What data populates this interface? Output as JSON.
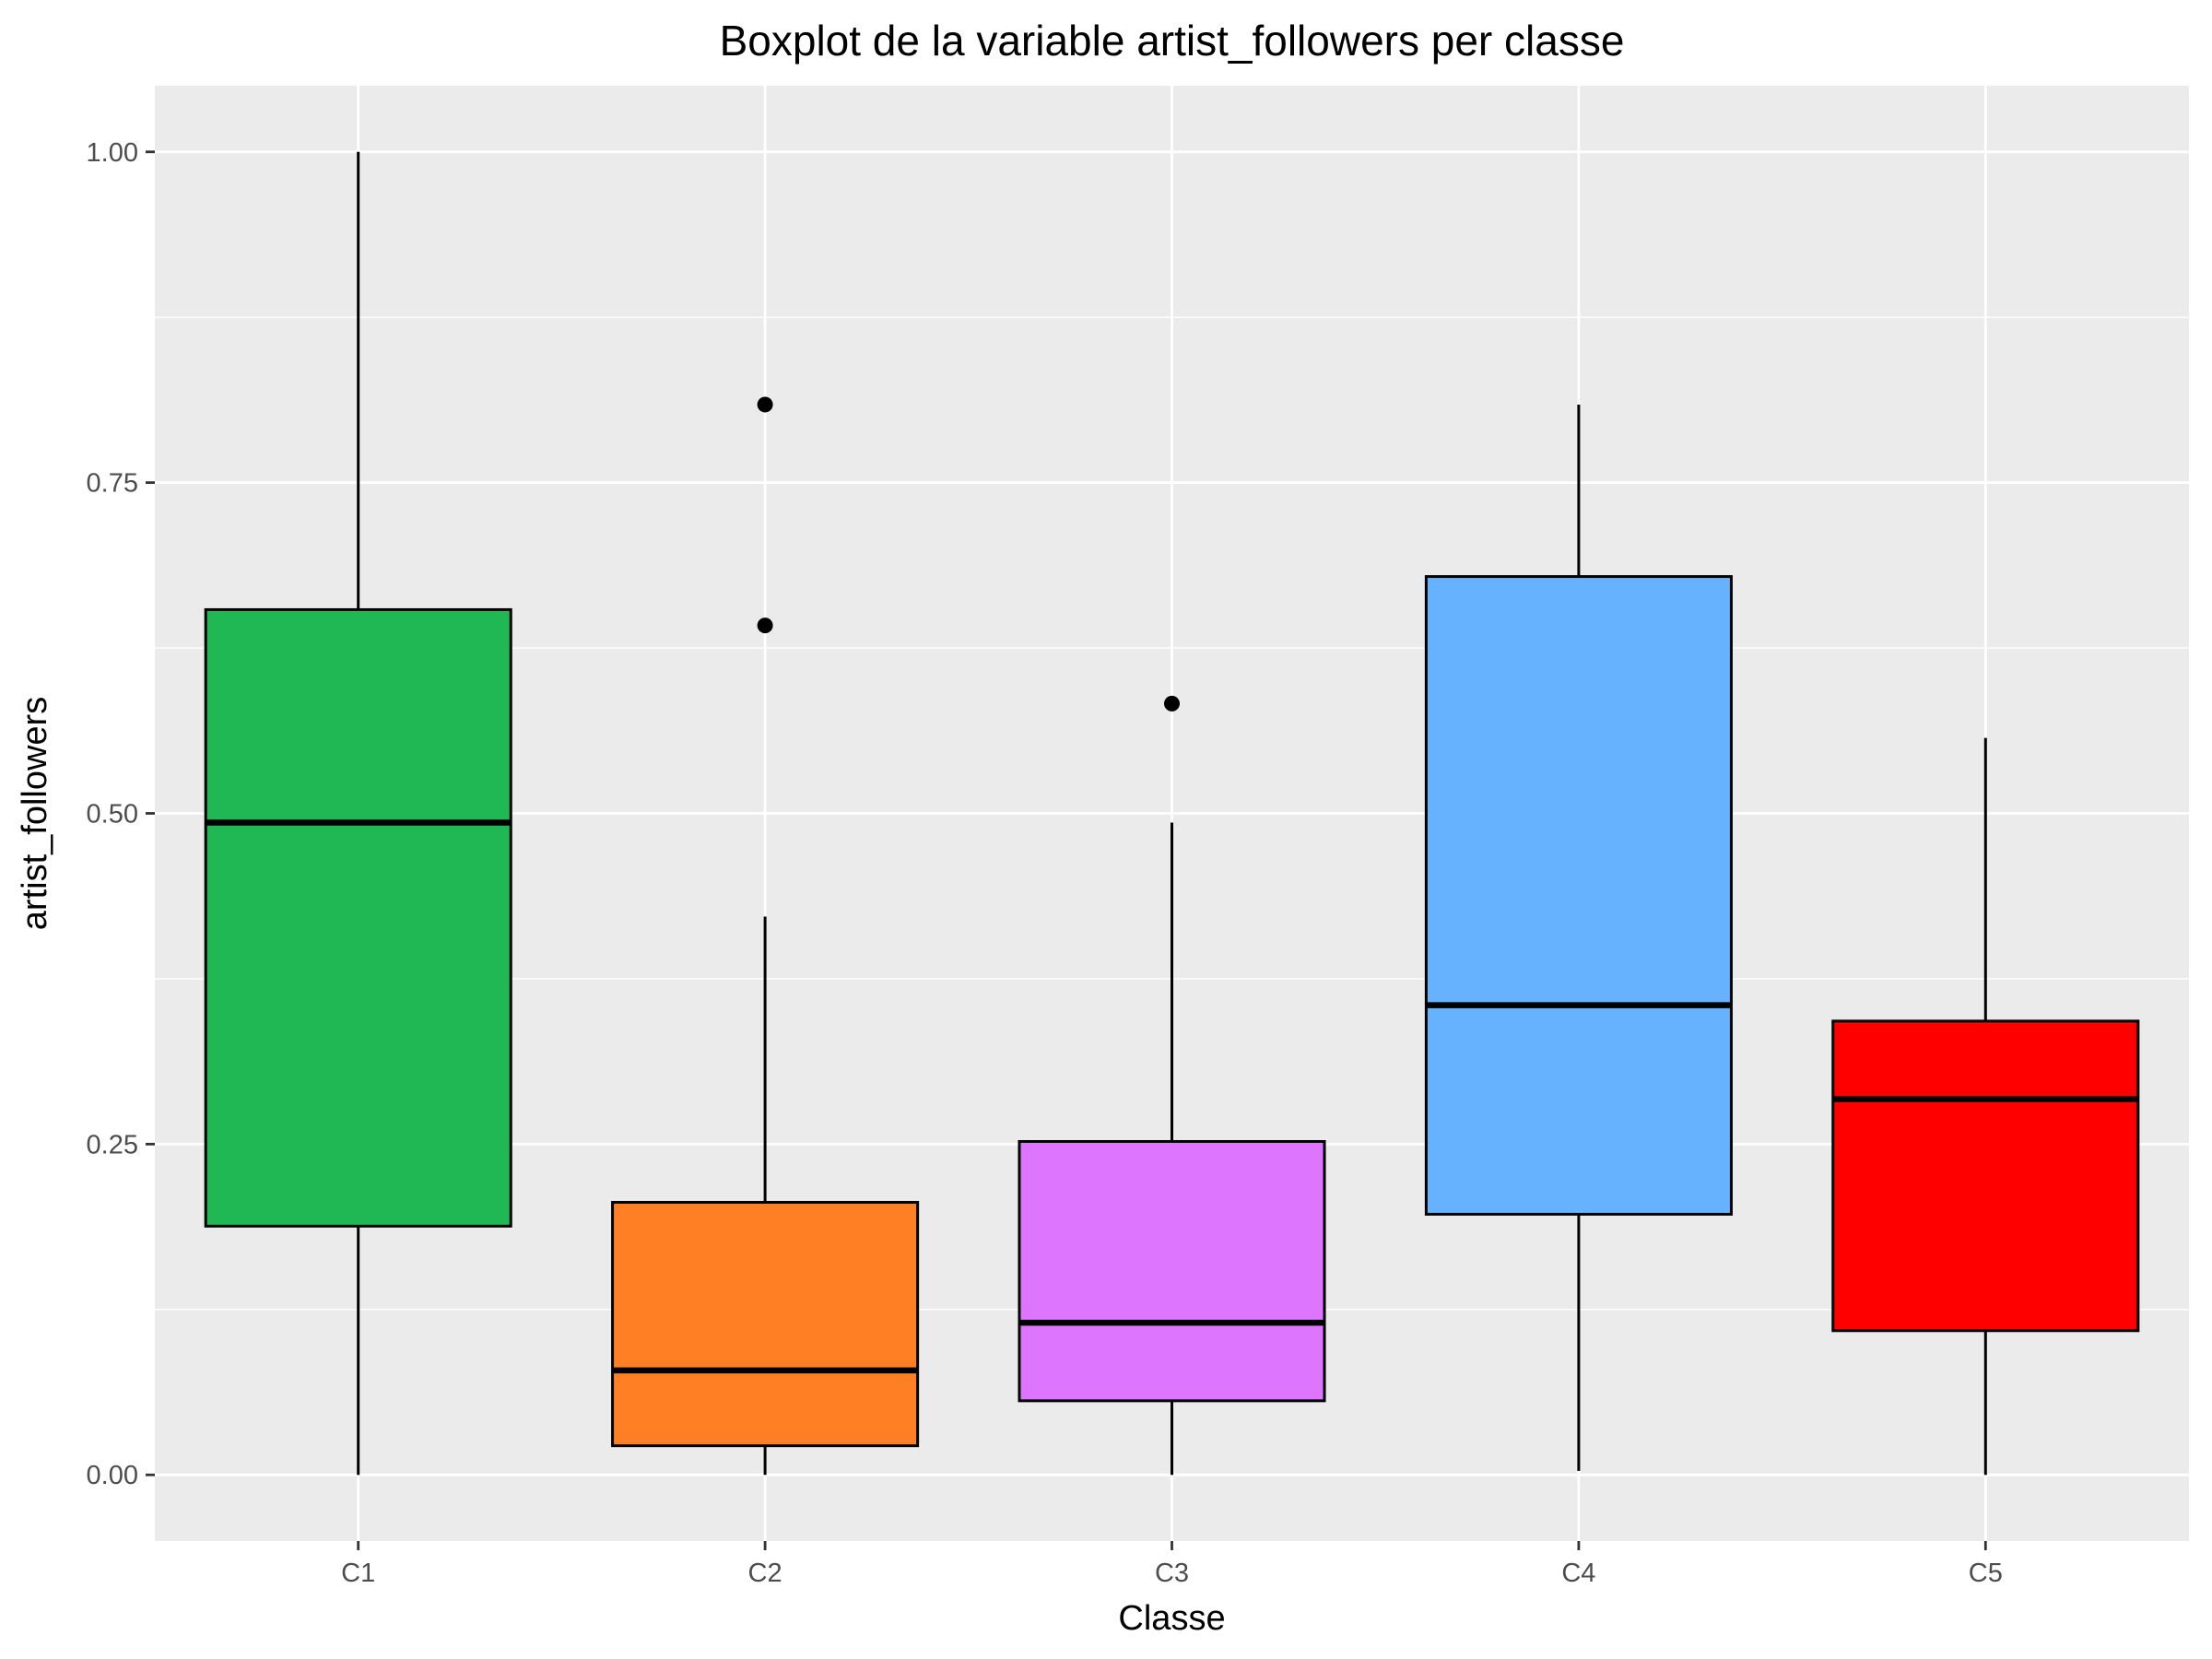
{
  "chart_data": {
    "type": "boxplot",
    "title": "Boxplot de la variable artist_followers per classe",
    "xlabel": "Classe",
    "ylabel": "artist_followers",
    "ylim": [
      -0.05,
      1.05
    ],
    "y_ticks": [
      "0.00",
      "0.25",
      "0.50",
      "0.75",
      "1.00"
    ],
    "grid": true,
    "legend": "none",
    "panel_background": "#EBEBEB",
    "grid_color": "#FFFFFF",
    "categories": [
      "C1",
      "C2",
      "C3",
      "C4",
      "C5"
    ],
    "boxes": [
      {
        "category": "C1",
        "color": "#1FB854",
        "whisker_low": 0.0,
        "q1": 0.188,
        "median": 0.493,
        "q3": 0.654,
        "whisker_high": 1.0,
        "outliers": []
      },
      {
        "category": "C2",
        "color": "#FF7F24",
        "whisker_low": 0.0,
        "q1": 0.022,
        "median": 0.079,
        "q3": 0.206,
        "whisker_high": 0.422,
        "outliers": [
          0.809,
          0.642
        ]
      },
      {
        "category": "C3",
        "color": "#DD75FF",
        "whisker_low": 0.0,
        "q1": 0.056,
        "median": 0.115,
        "q3": 0.252,
        "whisker_high": 0.493,
        "outliers": [
          0.583
        ]
      },
      {
        "category": "C4",
        "color": "#66B2FF",
        "whisker_low": 0.003,
        "q1": 0.197,
        "median": 0.355,
        "q3": 0.679,
        "whisker_high": 0.809,
        "outliers": []
      },
      {
        "category": "C5",
        "color": "#FF0000",
        "whisker_low": 0.0,
        "q1": 0.109,
        "median": 0.284,
        "q3": 0.343,
        "whisker_high": 0.557,
        "outliers": []
      }
    ]
  }
}
